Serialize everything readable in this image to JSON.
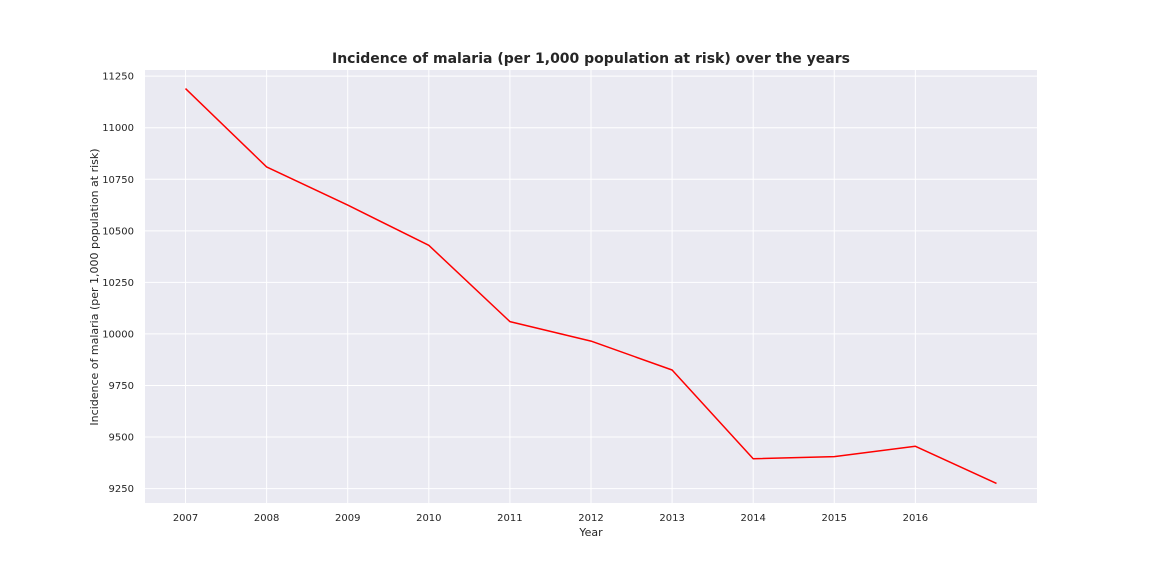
{
  "chart_data": {
    "type": "line",
    "title": "Incidence of malaria (per 1,000 population at risk) over the years",
    "xlabel": "Year",
    "ylabel": "Incidence of malaria (per 1,000 population at risk)",
    "x_ticks": [
      "2007",
      "2008",
      "2009",
      "2010",
      "2011",
      "2012",
      "2013",
      "2014",
      "2015",
      "2016"
    ],
    "y_ticks": [
      "9250",
      "9500",
      "9750",
      "10000",
      "10250",
      "10500",
      "10750",
      "11000",
      "11250"
    ],
    "xlim": [
      2006.5,
      2017.5
    ],
    "ylim": [
      9180,
      11280
    ],
    "grid": true,
    "series": [
      {
        "color": "#ff0000",
        "x": [
          2007,
          2008,
          2009,
          2010,
          2011,
          2012,
          2013,
          2014,
          2015,
          2016,
          2017
        ],
        "values": [
          11190,
          10810,
          10625,
          10430,
          10060,
          9965,
          9825,
          9395,
          9405,
          9455,
          9275
        ]
      }
    ],
    "background_color": "#eaeaf2",
    "grid_color": "#ffffff"
  }
}
